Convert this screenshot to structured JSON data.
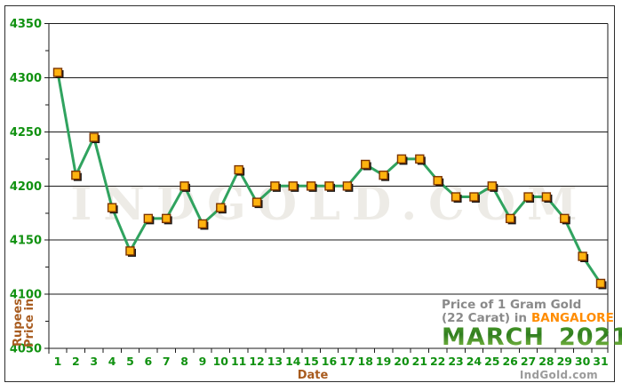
{
  "watermark": "IndGold.Com",
  "footer_brand": "IndGold.com",
  "axes": {
    "y_title_line1": "Price in",
    "y_title_line2": "Rupees",
    "x_title": "Date"
  },
  "legend": {
    "line1": "Price of 1 Gram Gold",
    "line2_prefix": "(22 Carat) in",
    "city": "BANGALORE",
    "month": "MARCH",
    "year": "2021"
  },
  "colors": {
    "line": "#30a35f",
    "marker_fill": "#ffb30f",
    "marker_stroke": "#7c3400",
    "marker_shadow": "#151515",
    "axis_text": "#109110",
    "axis_title": "#a85b1e",
    "grid": "#1a1a1a",
    "legend_gray": "#8a8a8a",
    "city_orange": "#ff8c00",
    "month_green": "#3f9427",
    "watermark_gray": "#edebe6",
    "footer_gray": "#9b9b9b"
  },
  "chart_data": {
    "type": "line",
    "title": "Price of 1 Gram Gold (22 Carat) in BANGALORE - MARCH 2021",
    "xlabel": "Date",
    "ylabel": "Price in Rupees",
    "ylim": [
      4050,
      4350
    ],
    "y_tick_step": 50,
    "y_minor_step": 25,
    "grid": true,
    "legend_position": "bottom-right",
    "x": [
      1,
      2,
      3,
      4,
      5,
      6,
      7,
      8,
      9,
      10,
      11,
      12,
      13,
      14,
      15,
      16,
      17,
      18,
      19,
      20,
      21,
      22,
      23,
      24,
      25,
      26,
      27,
      28,
      29,
      30,
      31
    ],
    "values": [
      4305,
      4210,
      4245,
      4180,
      4140,
      4170,
      4170,
      4200,
      4165,
      4180,
      4215,
      4185,
      4200,
      4200,
      4200,
      4200,
      4200,
      4220,
      4210,
      4225,
      4225,
      4205,
      4190,
      4190,
      4200,
      4170,
      4190,
      4190,
      4170,
      4135,
      4110
    ]
  }
}
